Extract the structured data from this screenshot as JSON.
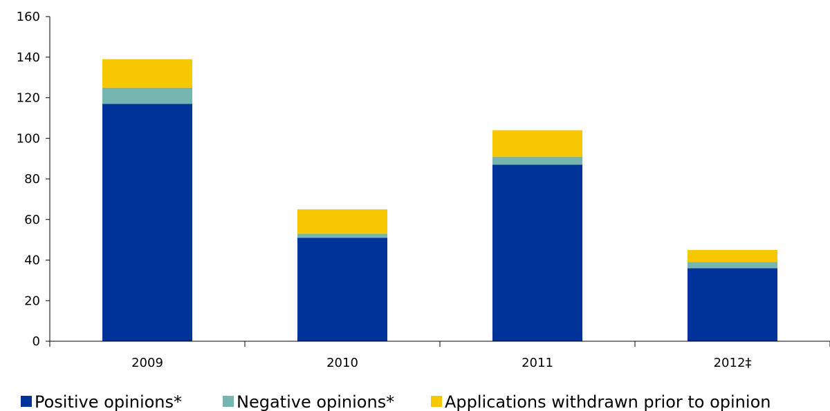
{
  "chart_data": {
    "type": "bar",
    "stacked": true,
    "categories": [
      "2009",
      "2010",
      "2011",
      "2012‡"
    ],
    "series": [
      {
        "name": "Positive opinions*",
        "color": "#003399",
        "values": [
          117,
          51,
          87,
          36
        ]
      },
      {
        "name": "Negative opinions*",
        "color": "#76b6b0",
        "values": [
          8,
          2,
          4,
          3
        ]
      },
      {
        "name": "Applications withdrawn prior to opinion",
        "color": "#f7c800",
        "values": [
          14,
          12,
          13,
          6
        ]
      }
    ],
    "title": "",
    "xlabel": "",
    "ylabel": "",
    "ylim": [
      0,
      160
    ],
    "yticks": [
      "0",
      "20",
      "40",
      "60",
      "80",
      "100",
      "120",
      "140",
      "160"
    ],
    "grid": false,
    "legend_position": "bottom"
  }
}
